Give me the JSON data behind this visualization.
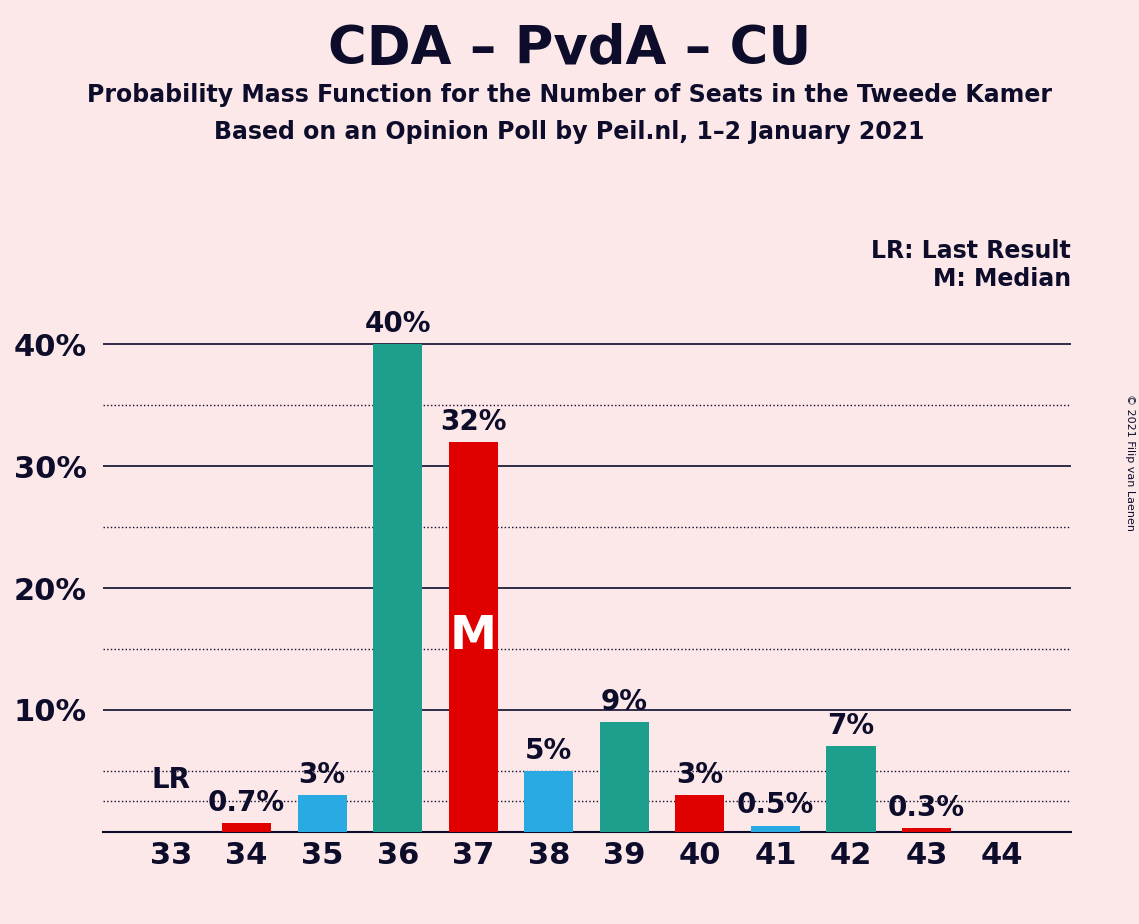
{
  "title": "CDA – PvdA – CU",
  "subtitle1": "Probability Mass Function for the Number of Seats in the Tweede Kamer",
  "subtitle2": "Based on an Opinion Poll by Peil.nl, 1–2 January 2021",
  "copyright": "© 2021 Filip van Laenen",
  "legend1": "LR: Last Result",
  "legend2": "M: Median",
  "background_color": "#fce8e8",
  "categories": [
    33,
    34,
    35,
    36,
    37,
    38,
    39,
    40,
    41,
    42,
    43,
    44
  ],
  "values": [
    0.0,
    0.7,
    3.0,
    40.0,
    32.0,
    5.0,
    9.0,
    3.0,
    0.5,
    7.0,
    0.3,
    0.0
  ],
  "bar_colors": [
    "#e00000",
    "#e00000",
    "#29aae2",
    "#1e9e8c",
    "#e00000",
    "#29aae2",
    "#1e9e8c",
    "#e00000",
    "#29aae2",
    "#1e9e8c",
    "#e00000",
    "#e00000"
  ],
  "label_texts": [
    "0%",
    "0.7%",
    "3%",
    "40%",
    "32%",
    "5%",
    "9%",
    "3%",
    "0.5%",
    "7%",
    "0.3%",
    "0%"
  ],
  "show_label": [
    false,
    true,
    true,
    true,
    true,
    true,
    true,
    true,
    true,
    true,
    true,
    false
  ],
  "ylim": [
    0,
    44
  ],
  "yticks": [
    10,
    20,
    30,
    40
  ],
  "ytick_labels": [
    "10%",
    "20%",
    "30%",
    "40%"
  ],
  "median_seat": 37,
  "lr_seat": 33,
  "dotted_lines": [
    5.0,
    15.0,
    25.0,
    35.0
  ],
  "solid_lines": [
    10.0,
    20.0,
    30.0,
    40.0
  ],
  "lr_value": 2.5,
  "title_fontsize": 38,
  "subtitle_fontsize": 17,
  "label_fontsize": 20,
  "axis_fontsize": 22,
  "legend_fontsize": 17,
  "text_color": "#0d0d2b"
}
